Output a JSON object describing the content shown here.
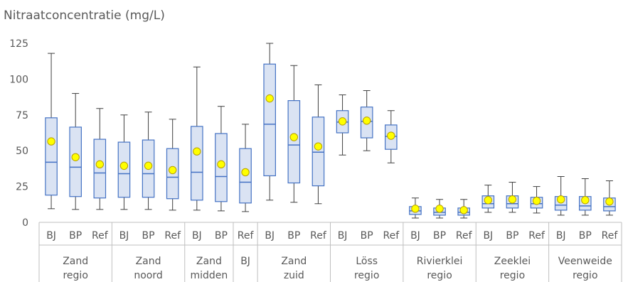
{
  "chart_data": {
    "type": "box",
    "title": "Nitraatconcentratie (mg/L)",
    "ylim": [
      0,
      125
    ],
    "yticks": [
      0,
      25,
      50,
      75,
      100,
      125
    ],
    "grid": false,
    "colors": {
      "box_fill": "#dae3f3",
      "box_stroke": "#4472c4",
      "whisker": "#404040",
      "mean_fill": "#ffff00",
      "mean_stroke": "#b8a000",
      "axis": "#bfbfbf",
      "text": "#595959"
    },
    "groups": [
      {
        "line1": "Zand",
        "line2": "regio",
        "boxes": [
          {
            "label": "BJ",
            "min": 9.5,
            "q1": 19,
            "median": 42,
            "q3": 73,
            "max": 118,
            "mean": 56.5
          },
          {
            "label": "BP",
            "min": 9,
            "q1": 18,
            "median": 38.5,
            "q3": 66.5,
            "max": 90,
            "mean": 45.5
          },
          {
            "label": "Ref",
            "min": 9,
            "q1": 17,
            "median": 34.5,
            "q3": 58,
            "max": 79.5,
            "mean": 40.5
          }
        ]
      },
      {
        "line1": "Zand",
        "line2": "noord",
        "boxes": [
          {
            "label": "BJ",
            "min": 9,
            "q1": 17.5,
            "median": 34,
            "q3": 56,
            "max": 75,
            "mean": 39.5
          },
          {
            "label": "BP",
            "min": 9,
            "q1": 17.5,
            "median": 34,
            "q3": 57.5,
            "max": 77,
            "mean": 39.5
          },
          {
            "label": "Ref",
            "min": 8.5,
            "q1": 16.5,
            "median": 31.5,
            "q3": 51.5,
            "max": 72,
            "mean": 36.5
          }
        ]
      },
      {
        "line1": "Zand",
        "line2": "midden",
        "boxes": [
          {
            "label": "BJ",
            "min": 8.5,
            "q1": 15.5,
            "median": 35,
            "q3": 67,
            "max": 108.5,
            "mean": 49.5
          },
          {
            "label": "BP",
            "min": 8,
            "q1": 14.5,
            "median": 32,
            "q3": 62,
            "max": 81,
            "mean": 40.5
          }
        ]
      },
      {
        "line1": "BJ",
        "line2": "",
        "boxes": [
          {
            "label": "Ref",
            "min": 7.5,
            "q1": 13.5,
            "median": 28,
            "q3": 51.5,
            "max": 68.5,
            "mean": 35
          }
        ]
      },
      {
        "line1": "Zand",
        "line2": "zuid",
        "boxes": [
          {
            "label": "BJ",
            "min": 15.5,
            "q1": 32.5,
            "median": 68.5,
            "q3": 110.5,
            "max": 125,
            "mean": 86.5
          },
          {
            "label": "BP",
            "min": 14,
            "q1": 27.5,
            "median": 54,
            "q3": 85,
            "max": 109.5,
            "mean": 59.5
          },
          {
            "label": "Ref",
            "min": 13,
            "q1": 25.5,
            "median": 49,
            "q3": 73.5,
            "max": 96,
            "mean": 53
          }
        ]
      },
      {
        "line1": "Löss",
        "line2": "regio",
        "boxes": [
          {
            "label": "BJ",
            "min": 47,
            "q1": 62.5,
            "median": 70,
            "q3": 78,
            "max": 89,
            "mean": 70.5
          },
          {
            "label": "BP",
            "min": 50,
            "q1": 59,
            "median": 70.5,
            "q3": 80.5,
            "max": 92,
            "mean": 71
          },
          {
            "label": "Ref",
            "min": 41.5,
            "q1": 51,
            "median": 60,
            "q3": 68,
            "max": 78,
            "mean": 60.5
          }
        ]
      },
      {
        "line1": "Rivierklei",
        "line2": "regio",
        "boxes": [
          {
            "label": "BJ",
            "min": 3,
            "q1": 5.5,
            "median": 8,
            "q3": 11,
            "max": 17,
            "mean": 9.5
          },
          {
            "label": "BP",
            "min": 3,
            "q1": 5,
            "median": 7,
            "q3": 10,
            "max": 16,
            "mean": 9.5
          },
          {
            "label": "Ref",
            "min": 3,
            "q1": 5,
            "median": 7,
            "q3": 10,
            "max": 16,
            "mean": 8.5
          }
        ]
      },
      {
        "line1": "Zeeklei",
        "line2": "regio",
        "boxes": [
          {
            "label": "BJ",
            "min": 7,
            "q1": 10,
            "median": 13,
            "q3": 18.5,
            "max": 26,
            "mean": 15.5
          },
          {
            "label": "BP",
            "min": 7,
            "q1": 10,
            "median": 13,
            "q3": 18.5,
            "max": 28,
            "mean": 16
          },
          {
            "label": "Ref",
            "min": 6.5,
            "q1": 10,
            "median": 13,
            "q3": 17.5,
            "max": 25,
            "mean": 15
          }
        ]
      },
      {
        "line1": "Veenweide",
        "line2": "regio",
        "boxes": [
          {
            "label": "BJ",
            "min": 5,
            "q1": 8.5,
            "median": 12,
            "q3": 18,
            "max": 32,
            "mean": 16
          },
          {
            "label": "BP",
            "min": 5,
            "q1": 8.5,
            "median": 11.5,
            "q3": 18,
            "max": 30.5,
            "mean": 15.5
          },
          {
            "label": "Ref",
            "min": 5,
            "q1": 8,
            "median": 11,
            "q3": 17,
            "max": 29,
            "mean": 14.5
          }
        ]
      }
    ]
  }
}
